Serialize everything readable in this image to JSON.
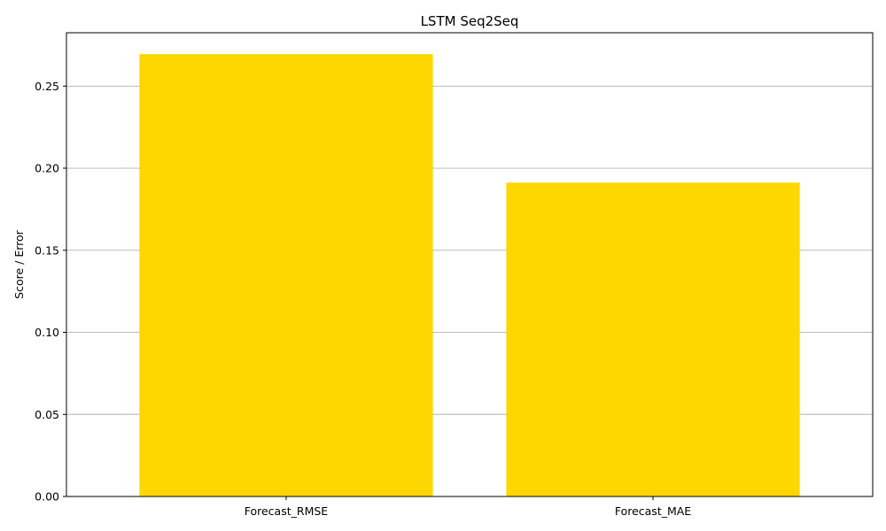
{
  "chart_data": {
    "type": "bar",
    "title": "LSTM Seq2Seq",
    "xlabel": "",
    "ylabel": "Score / Error",
    "categories": [
      "Forecast_RMSE",
      "Forecast_MAE"
    ],
    "values": [
      0.2695,
      0.1912
    ],
    "ylim": [
      0,
      0.2825
    ],
    "yticks": [
      "0.00",
      "0.05",
      "0.10",
      "0.15",
      "0.20",
      "0.25"
    ],
    "grid": "y-major",
    "bar_color": "#FFD700",
    "grid_color": "#b0b0b0"
  }
}
